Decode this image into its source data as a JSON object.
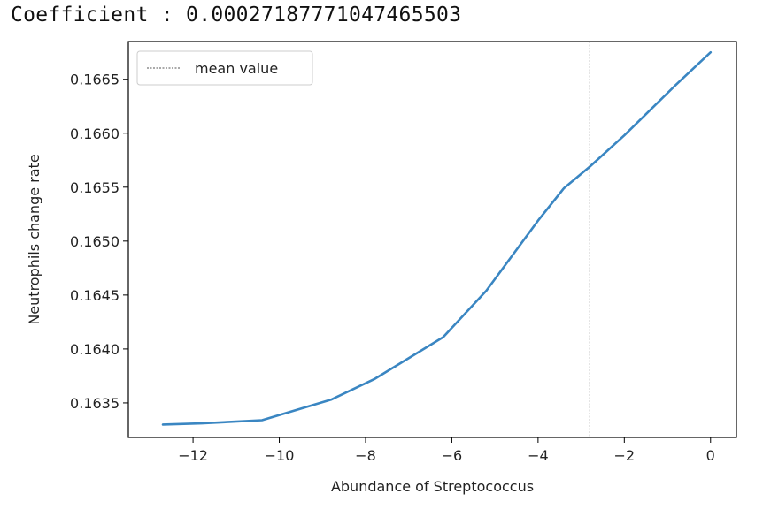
{
  "header": {
    "text": "Coefficient : 0.0002718777104746550З"
  },
  "chart_data": {
    "type": "line",
    "title": "",
    "xlabel": "Abundance of Streptococcus",
    "ylabel": "Neutrophils change rate",
    "xlim": [
      -13.5,
      0.6
    ],
    "ylim": [
      0.16318,
      0.16685
    ],
    "xticks": [
      -12,
      -10,
      -8,
      -6,
      -4,
      -2,
      0
    ],
    "xtick_labels": [
      "−12",
      "−10",
      "−8",
      "−6",
      "−4",
      "−2",
      "0"
    ],
    "yticks": [
      0.1635,
      0.164,
      0.1645,
      0.165,
      0.1655,
      0.166,
      0.1665
    ],
    "ytick_labels": [
      "0.1635",
      "0.1640",
      "0.1645",
      "0.1650",
      "0.1655",
      "0.1660",
      "0.1665"
    ],
    "grid": false,
    "legend": {
      "position": "top-left",
      "entries": [
        {
          "label": "mean value",
          "style": "dotted",
          "color": "#555555"
        }
      ]
    },
    "mean_value_x": -2.8,
    "series": [
      {
        "color": "#3a86c2",
        "x": [
          -12.7,
          -11.8,
          -10.4,
          -8.8,
          -7.8,
          -6.2,
          -5.2,
          -4.0,
          -3.4,
          -2.8,
          -2.0,
          -0.8,
          0.0
        ],
        "y": [
          0.1633,
          0.16331,
          0.16334,
          0.16353,
          0.16372,
          0.16411,
          0.16454,
          0.16519,
          0.16549,
          0.16569,
          0.16598,
          0.16645,
          0.16675
        ]
      }
    ]
  }
}
